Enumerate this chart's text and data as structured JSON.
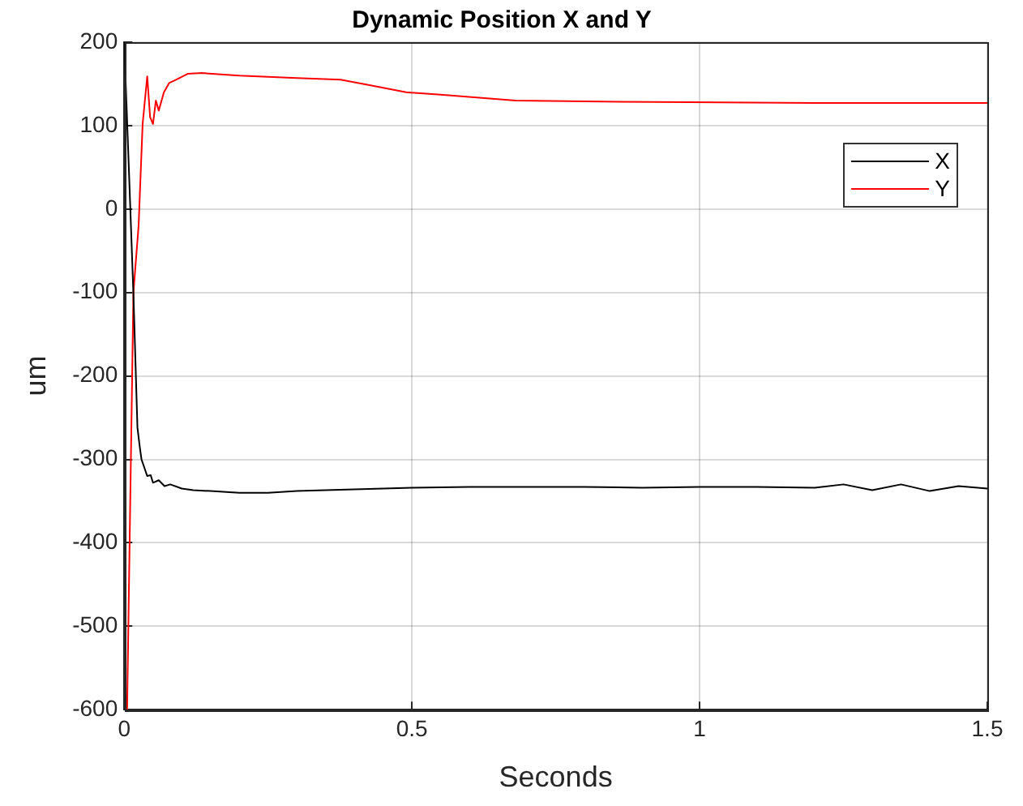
{
  "chart_data": {
    "type": "line",
    "title": "Dynamic Position X and Y",
    "xlabel": "Seconds",
    "ylabel": "um",
    "xlim": [
      0,
      1.5
    ],
    "xticks": [
      0,
      0.5,
      1,
      1.5
    ],
    "ylim": [
      -600,
      200
    ],
    "yticks": [
      -600,
      -500,
      -400,
      -300,
      -200,
      -100,
      0,
      100,
      200
    ],
    "grid": true,
    "legend": "top right",
    "marker": "none",
    "line_style": "solid",
    "series": [
      {
        "name": "X",
        "color": "#000000",
        "x": [
          0,
          0.008,
          0.016,
          0.023,
          0.027,
          0.03,
          0.035,
          0.04,
          0.046,
          0.05,
          0.06,
          0.07,
          0.08,
          0.1,
          0.12,
          0.15,
          0.2,
          0.25,
          0.3,
          0.35,
          0.4,
          0.45,
          0.5,
          0.6,
          0.7,
          0.8,
          0.9,
          1.0,
          1.1,
          1.2,
          1.25,
          1.3,
          1.35,
          1.4,
          1.45,
          1.5
        ],
        "values": [
          200,
          50,
          -102,
          -262,
          -285,
          -300,
          -310,
          -320,
          -319,
          -328,
          -325,
          -332,
          -330,
          -335,
          -337,
          -338,
          -340,
          -340,
          -338,
          -337,
          -336,
          -335,
          -334,
          -333,
          -333,
          -333,
          -334,
          -333,
          -333,
          -334,
          -330,
          -337,
          -330,
          -338,
          -332,
          -335
        ]
      },
      {
        "name": "Y",
        "color": "#ff0000",
        "x": [
          0.005,
          0.016,
          0.025,
          0.032,
          0.04,
          0.045,
          0.05,
          0.055,
          0.06,
          0.069,
          0.078,
          0.09,
          0.11,
          0.135,
          0.2,
          0.3,
          0.376,
          0.43,
          0.49,
          0.55,
          0.68,
          0.8,
          0.98,
          1.2,
          1.5
        ],
        "values": [
          -600,
          -100,
          -20,
          102,
          159,
          110,
          102,
          130,
          118,
          140,
          151,
          155,
          162,
          163,
          160,
          157,
          155,
          148,
          140,
          137,
          130,
          129,
          128,
          127,
          127
        ]
      }
    ]
  }
}
